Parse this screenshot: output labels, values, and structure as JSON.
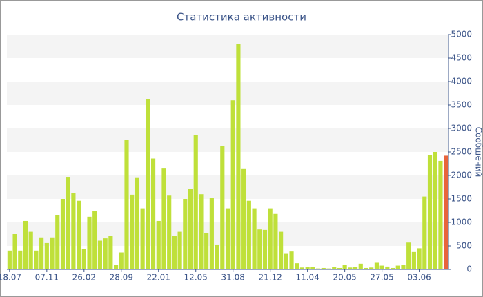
{
  "chart_data": {
    "type": "bar",
    "title": "Статистика активности",
    "y_label": "Сообщений",
    "categories": [
      "18.07",
      null,
      null,
      null,
      null,
      null,
      null,
      "07.11",
      null,
      null,
      null,
      null,
      null,
      null,
      "26.02",
      null,
      null,
      null,
      null,
      null,
      null,
      "28.09",
      null,
      null,
      null,
      null,
      null,
      null,
      "22.01",
      null,
      null,
      null,
      null,
      null,
      null,
      "12.05",
      null,
      null,
      null,
      null,
      null,
      null,
      "31.08",
      null,
      null,
      null,
      null,
      null,
      null,
      "21.12",
      null,
      null,
      null,
      null,
      null,
      null,
      "11.04",
      null,
      null,
      null,
      null,
      null,
      null,
      "20.05",
      null,
      null,
      null,
      null,
      null,
      null,
      "27.05",
      null,
      null,
      null,
      null,
      null,
      null,
      "03.06",
      null,
      null,
      null,
      null,
      null
    ],
    "values": [
      400,
      750,
      400,
      1030,
      800,
      400,
      680,
      560,
      680,
      1160,
      1500,
      1970,
      1620,
      1460,
      430,
      1120,
      1240,
      610,
      660,
      720,
      100,
      360,
      2760,
      1590,
      1960,
      1300,
      3630,
      2360,
      1030,
      2160,
      1570,
      710,
      800,
      1500,
      1720,
      2860,
      1600,
      770,
      1520,
      530,
      2620,
      1300,
      3600,
      4800,
      2150,
      1460,
      1300,
      850,
      840,
      1300,
      1180,
      800,
      330,
      380,
      130,
      40,
      50,
      50,
      20,
      30,
      20,
      50,
      30,
      100,
      40,
      50,
      120,
      30,
      40,
      140,
      80,
      60,
      30,
      80,
      100,
      570,
      370,
      450,
      1550,
      2440,
      2500,
      2310,
      2420
    ],
    "color": "#bfe03a",
    "highlight": {
      "index": 82,
      "color": "#e8643c"
    },
    "ylim": [
      0,
      5000
    ],
    "yticks": [
      0,
      500,
      1000,
      1500,
      2000,
      2500,
      3000,
      3500,
      4000,
      4500,
      5000
    ],
    "grid": "bands"
  }
}
